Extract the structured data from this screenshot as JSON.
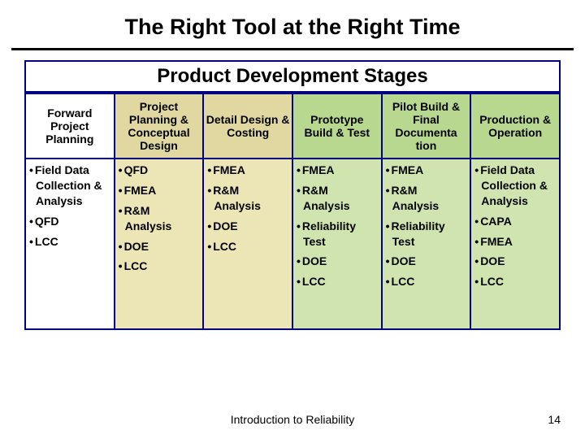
{
  "title": "The Right Tool at the Right Time",
  "subtitle": "Product Development Stages",
  "footer": {
    "center": "Introduction to Reliability",
    "page": "14"
  },
  "colors": {
    "border": "#000080",
    "header_bgs": [
      "#ffffff",
      "#e0d8a0",
      "#e0d8a0",
      "#b8d890",
      "#b8d890",
      "#b8d890"
    ],
    "cell_bgs": [
      "#ffffff",
      "#ece5b5",
      "#ece5b5",
      "#d0e4b0",
      "#d0e4b0",
      "#d0e4b0"
    ]
  },
  "columns": [
    {
      "header": "Forward Project Planning",
      "tools": [
        "Field Data Collection & Analysis",
        "QFD",
        "LCC"
      ]
    },
    {
      "header": "Project Planning & Conceptual Design",
      "tools": [
        "QFD",
        "FMEA",
        "R&M Analysis",
        "DOE",
        "LCC"
      ]
    },
    {
      "header": "Detail Design & Costing",
      "tools": [
        "FMEA",
        "R&M Analysis",
        "DOE",
        "LCC"
      ]
    },
    {
      "header": "Prototype Build & Test",
      "tools": [
        "FMEA",
        "R&M Analysis",
        "Reliability Test",
        "DOE",
        "LCC"
      ]
    },
    {
      "header": "Pilot Build & Final Documenta tion",
      "tools": [
        "FMEA",
        "R&M Analysis",
        "Reliability Test",
        "DOE",
        "LCC"
      ]
    },
    {
      "header": "Production & Operation",
      "tools": [
        "Field Data Collection & Analysis",
        "CAPA",
        "FMEA",
        "DOE",
        "LCC"
      ]
    }
  ]
}
